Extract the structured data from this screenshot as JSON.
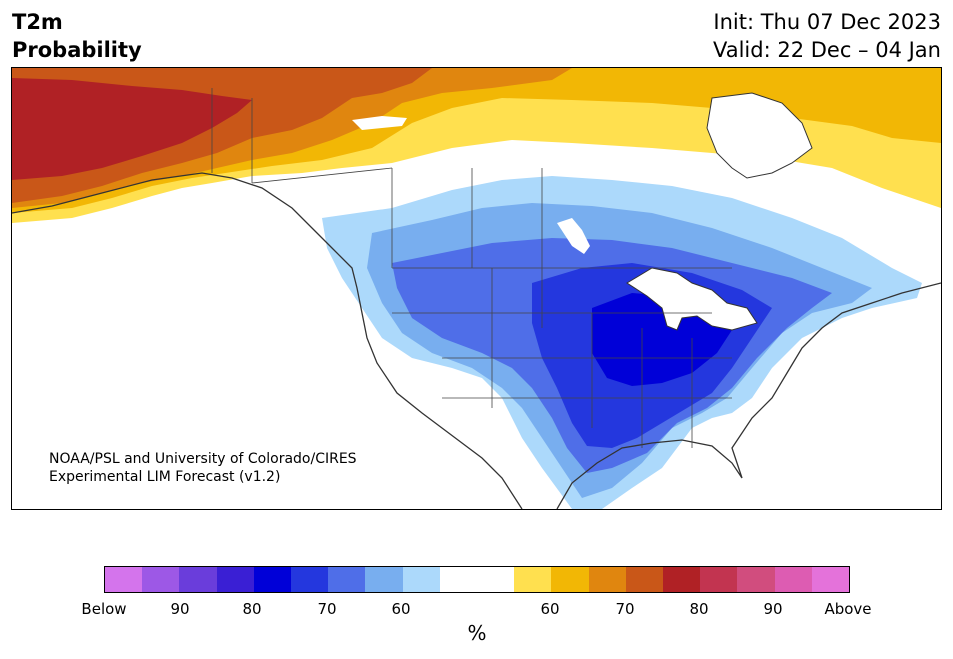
{
  "header": {
    "title_line1": "T2m",
    "title_line2": "Probability",
    "init_text": "Init: Thu 07 Dec 2023",
    "valid_text": "Valid: 22 Dec – 04 Jan"
  },
  "map": {
    "region": "North America",
    "credit_line1": "NOAA/PSL and University of Colorado/CIRES",
    "credit_line2": "Experimental LIM Forecast (v1.2)",
    "features": [
      "coastlines",
      "state-borders",
      "province-borders",
      "great-lakes"
    ]
  },
  "colorbar": {
    "unit_label": "%",
    "bins": [
      "#d474ec",
      "#9d58e6",
      "#6a3ddb",
      "#3a1fd4",
      "#0000d8",
      "#2437de",
      "#4f6ee8",
      "#78aeef",
      "#acd9fb",
      "#ffffff",
      "#ffffff",
      "#ffe04f",
      "#f2b705",
      "#e0860f",
      "#c95718",
      "#b02125",
      "#c23450",
      "#d14d7e",
      "#dd5cb2",
      "#e472da"
    ],
    "ticks": [
      "Below",
      "90",
      "80",
      "70",
      "60",
      "60",
      "70",
      "80",
      "90",
      "Above"
    ]
  },
  "colors": {
    "below_scale": [
      "#acd9fb",
      "#78aeef",
      "#4f6ee8",
      "#2437de",
      "#0000d8"
    ],
    "above_scale": [
      "#ffe04f",
      "#f2b705",
      "#e0860f",
      "#c95718",
      "#b02125"
    ]
  }
}
